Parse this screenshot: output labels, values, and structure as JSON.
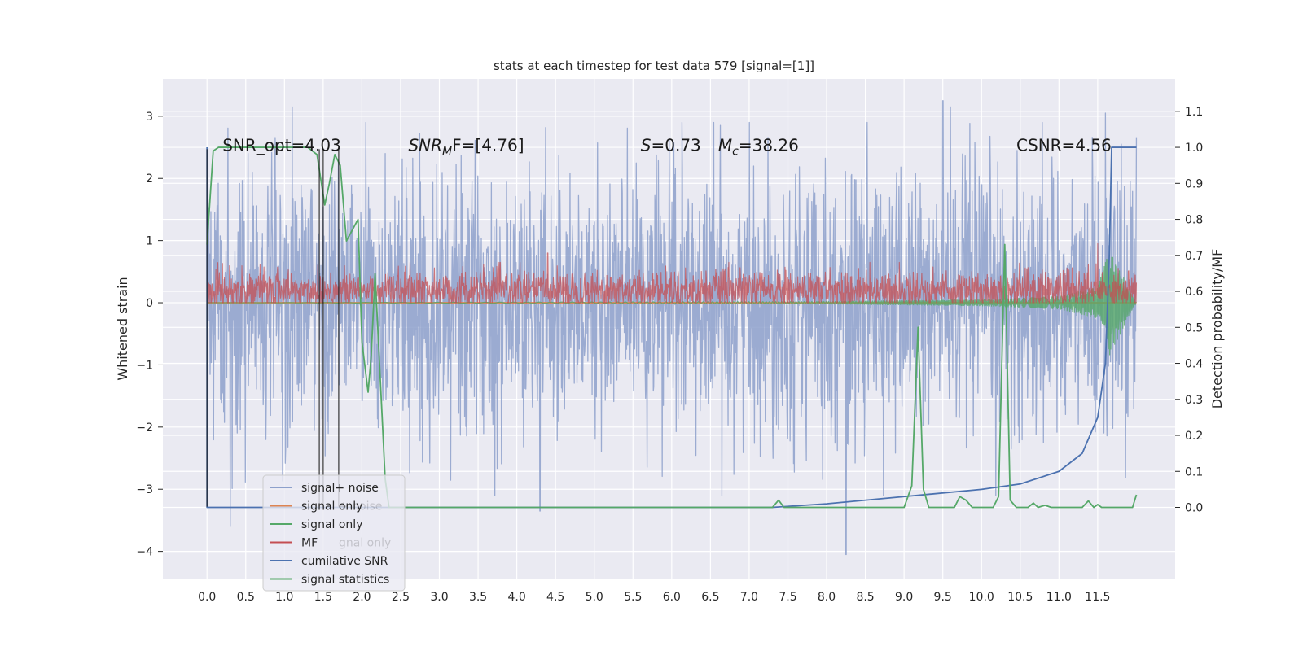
{
  "chart_data": {
    "type": "line",
    "title": "stats at each timestep for test data 579 [signal=[1]]",
    "xlabel": "",
    "ylabel": "Whitened strain",
    "ylabel_right": "Detection probability/MF",
    "xlim": [
      -0.57,
      12.5
    ],
    "ylim": [
      -4.45,
      3.6
    ],
    "ylim_right": [
      -0.2,
      1.19
    ],
    "grid": true,
    "x_ticks": [
      "0.0",
      "0.5",
      "1.0",
      "1.5",
      "2.0",
      "2.5",
      "3.0",
      "3.5",
      "4.0",
      "4.5",
      "5.0",
      "5.5",
      "6.0",
      "6.5",
      "7.0",
      "7.5",
      "8.0",
      "8.5",
      "9.0",
      "9.5",
      "10.0",
      "10.5",
      "11.0",
      "11.5"
    ],
    "y_ticks": [
      "−4",
      "−3",
      "−2",
      "−1",
      "0",
      "1",
      "2",
      "3"
    ],
    "y_ticks_right": [
      "0.0",
      "0.1",
      "0.2",
      "0.3",
      "0.4",
      "0.5",
      "0.6",
      "0.7",
      "0.8",
      "0.9",
      "1.0",
      "1.1"
    ],
    "annotations": [
      {
        "text": "SNR_opt=4.03",
        "x": 0.2
      },
      {
        "text": "SNR_MF=[4.76]",
        "x": 2.6,
        "main": "SNR",
        "sub": "M",
        "tail": "F=[4.76]"
      },
      {
        "text": "S=0.73",
        "x": 5.6,
        "main": "S",
        "tail": "=0.73"
      },
      {
        "text": "M_c=38.26",
        "x": 6.6,
        "main": "M",
        "sub": "c",
        "tail": "=38.26"
      },
      {
        "text": "CSNR=4.56",
        "x": 10.45
      }
    ],
    "vlines": [
      0.0,
      1.45,
      1.5,
      1.7
    ],
    "legend": {
      "placement": "lower-left",
      "entries": [
        {
          "label": "signal+ noise",
          "color": "#8da0cb"
        },
        {
          "label": "signal only",
          "color": "#dd8452"
        },
        {
          "label": "signal only",
          "color": "#55a868"
        },
        {
          "label": "MF",
          "color": "#c44e52"
        },
        {
          "label": "cumilative SNR",
          "color": "#4c72b0"
        },
        {
          "label": "signal statistics",
          "color": "#55a868"
        }
      ],
      "ghost_text": [
        {
          "text": "+ noise",
          "entry": 1
        },
        {
          "text": "gnal only",
          "entry": 3
        },
        {
          "text": "statistics",
          "entry": 5
        }
      ]
    },
    "series": [
      {
        "name": "signal+ noise",
        "axis": "left",
        "color": "#8da0cb",
        "t_range": [
          0.0,
          12.0
        ],
        "sampling": "dense",
        "envelope_typical": [
          -1.8,
          1.6
        ],
        "notable_peaks": [
          {
            "x": 0.3,
            "y": -3.6
          },
          {
            "x": 1.1,
            "y": 3.15
          },
          {
            "x": 4.3,
            "y": -3.35
          },
          {
            "x": 8.25,
            "y": -4.05
          },
          {
            "x": 9.5,
            "y": 3.25
          },
          {
            "x": 9.6,
            "y": 3.15
          },
          {
            "x": 11.6,
            "y": 3.05
          }
        ]
      },
      {
        "name": "signal only",
        "axis": "left",
        "color": "#dd8452",
        "points": [
          [
            0.0,
            0.0
          ],
          [
            12.0,
            0.0
          ]
        ]
      },
      {
        "name": "signal only",
        "axis": "left",
        "color": "#55a868",
        "t_range": [
          0.0,
          12.0
        ],
        "description": "chirp near zero, growing amplitude",
        "amplitude_points": [
          [
            0.0,
            0.0
          ],
          [
            8.0,
            0.02
          ],
          [
            10.0,
            0.05
          ],
          [
            11.0,
            0.1
          ],
          [
            11.5,
            0.25
          ],
          [
            11.65,
            0.85
          ],
          [
            12.0,
            0.0
          ]
        ]
      },
      {
        "name": "MF",
        "axis": "left",
        "color": "#c44e52",
        "t_range": [
          0.0,
          12.0
        ],
        "envelope_typical": [
          0.0,
          0.55
        ],
        "notable_peaks": [
          {
            "x": 4.4,
            "y": 0.8
          },
          {
            "x": 11.5,
            "y": 0.95
          }
        ]
      },
      {
        "name": "cumilative SNR",
        "axis": "right",
        "color": "#4c72b0",
        "points": [
          [
            0.0,
            1.0
          ],
          [
            0.0,
            0.0
          ],
          [
            7.3,
            0.0
          ],
          [
            8.0,
            0.01
          ],
          [
            9.0,
            0.03
          ],
          [
            10.0,
            0.05
          ],
          [
            10.5,
            0.065
          ],
          [
            11.0,
            0.1
          ],
          [
            11.3,
            0.15
          ],
          [
            11.5,
            0.25
          ],
          [
            11.6,
            0.4
          ],
          [
            11.65,
            0.7
          ],
          [
            11.68,
            1.0
          ],
          [
            12.0,
            1.0
          ]
        ]
      },
      {
        "name": "signal statistics",
        "axis": "right",
        "color": "#55a868",
        "points": [
          [
            0.0,
            0.73
          ],
          [
            0.08,
            0.99
          ],
          [
            0.15,
            1.0
          ],
          [
            1.3,
            1.0
          ],
          [
            1.42,
            0.98
          ],
          [
            1.52,
            0.84
          ],
          [
            1.58,
            0.9
          ],
          [
            1.65,
            0.98
          ],
          [
            1.72,
            0.95
          ],
          [
            1.8,
            0.74
          ],
          [
            1.9,
            0.78
          ],
          [
            1.95,
            0.8
          ],
          [
            2.0,
            0.46
          ],
          [
            2.08,
            0.32
          ],
          [
            2.12,
            0.42
          ],
          [
            2.17,
            0.65
          ],
          [
            2.25,
            0.3
          ],
          [
            2.3,
            0.08
          ],
          [
            2.35,
            0.0
          ],
          [
            7.3,
            0.0
          ],
          [
            7.38,
            0.02
          ],
          [
            7.45,
            0.0
          ],
          [
            9.0,
            0.0
          ],
          [
            9.1,
            0.06
          ],
          [
            9.18,
            0.5
          ],
          [
            9.25,
            0.05
          ],
          [
            9.32,
            0.0
          ],
          [
            9.65,
            0.0
          ],
          [
            9.72,
            0.03
          ],
          [
            9.8,
            0.02
          ],
          [
            9.88,
            0.0
          ],
          [
            10.15,
            0.0
          ],
          [
            10.22,
            0.03
          ],
          [
            10.3,
            0.73
          ],
          [
            10.37,
            0.02
          ],
          [
            10.45,
            0.0
          ],
          [
            10.6,
            0.0
          ],
          [
            10.67,
            0.012
          ],
          [
            10.73,
            0.0
          ],
          [
            10.82,
            0.006
          ],
          [
            10.9,
            0.0
          ],
          [
            11.3,
            0.0
          ],
          [
            11.38,
            0.018
          ],
          [
            11.45,
            0.0
          ],
          [
            11.5,
            0.008
          ],
          [
            11.55,
            0.0
          ],
          [
            11.95,
            0.0
          ],
          [
            12.0,
            0.035
          ]
        ]
      }
    ]
  }
}
